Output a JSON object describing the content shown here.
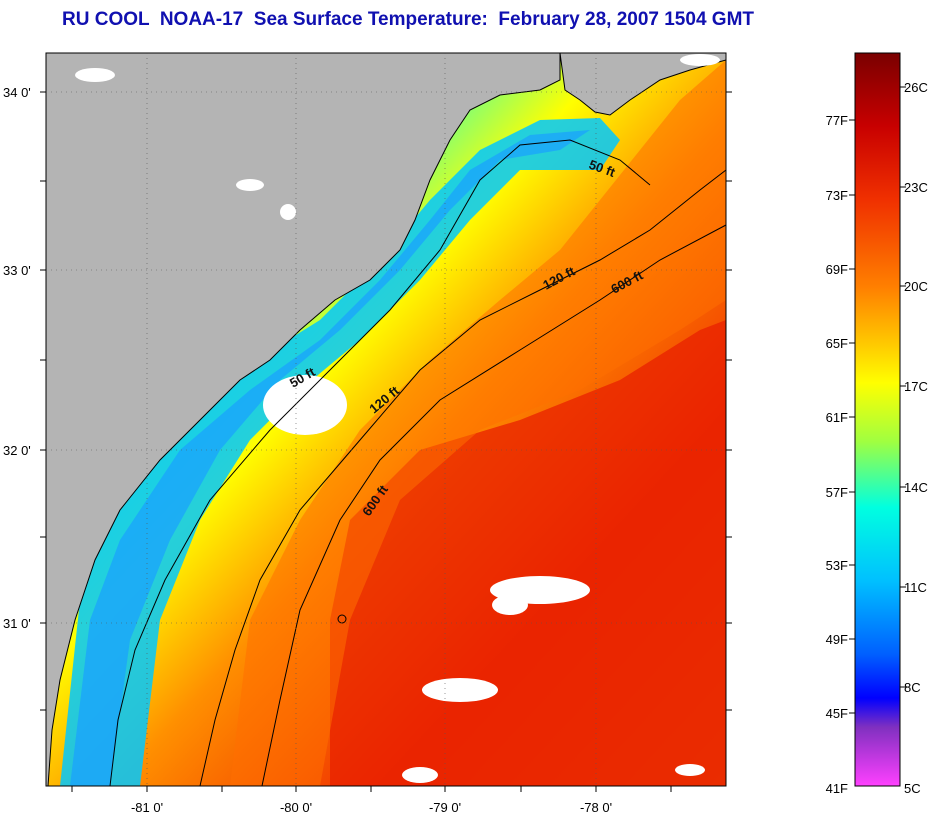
{
  "title": "RU COOL  NOAA-17  Sea Surface Temperature:  February 28, 2007 1504 GMT",
  "map": {
    "lat_labels": [
      "34 0'",
      "33 0'",
      "32 0'",
      "31 0'"
    ],
    "lon_labels": [
      "-81 0'",
      "-80 0'",
      "-79 0'",
      "-78 0'"
    ],
    "contour_labels": [
      "50 ft",
      "120 ft",
      "600 ft",
      "50 ft",
      "120 ft",
      "600 ft"
    ],
    "colors": {
      "land": "#b4b4b4",
      "cloud": "#ffffff",
      "coast": "#000000"
    }
  },
  "colorbar": {
    "fahrenheit_labels": [
      "77F",
      "73F",
      "69F",
      "65F",
      "61F",
      "57F",
      "53F",
      "49F",
      "45F",
      "41F"
    ],
    "celsius_labels": [
      "26C",
      "23C",
      "20C",
      "17C",
      "14C",
      "11C",
      "8C",
      "5C"
    ],
    "gradient": [
      "#7a0000",
      "#c80000",
      "#f03000",
      "#ff8000",
      "#ffcc00",
      "#ffff00",
      "#a0ff40",
      "#00ffe0",
      "#00c0ff",
      "#0060ff",
      "#0000ff",
      "#8030c0",
      "#ff40ff"
    ]
  }
}
